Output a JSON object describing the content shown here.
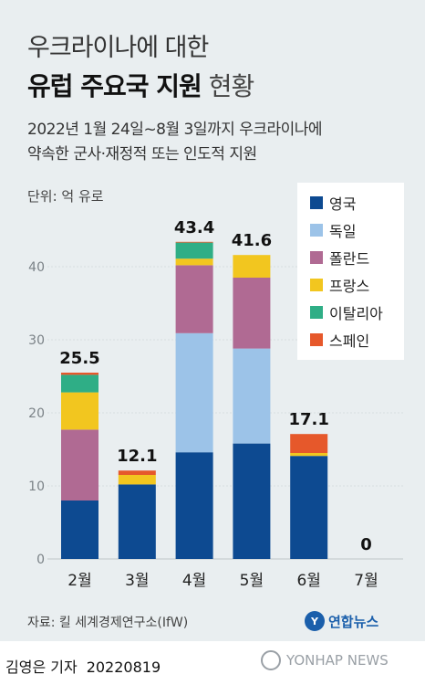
{
  "header": {
    "title_line1": "우크라이나에 대한",
    "title_bold": "유럽 주요국 지원",
    "title_light": "현황",
    "subtitle_line1": "2022년 1월 24일~8월 3일까지 우크라이나에",
    "subtitle_line2": "약속한 군사·재정적 또는 인도적 지원",
    "unit": "단위: 억 유로"
  },
  "legend": [
    {
      "label": "영국",
      "color": "#0d4a91"
    },
    {
      "label": "독일",
      "color": "#9cc3e8"
    },
    {
      "label": "폴란드",
      "color": "#b06a93"
    },
    {
      "label": "프랑스",
      "color": "#f2c61f"
    },
    {
      "label": "이탈리아",
      "color": "#2fae86"
    },
    {
      "label": "스페인",
      "color": "#e6582b"
    }
  ],
  "chart_data": {
    "type": "bar",
    "stacked": true,
    "categories": [
      "2월",
      "3월",
      "4월",
      "5월",
      "6월",
      "7월"
    ],
    "totals": [
      "25.5",
      "12.1",
      "43.4",
      "41.6",
      "17.1",
      "0"
    ],
    "ylim": [
      0,
      45
    ],
    "yticks": [
      "0",
      "10",
      "20",
      "30",
      "40"
    ],
    "series": [
      {
        "name": "영국",
        "color": "#0d4a91",
        "values": [
          8.0,
          10.2,
          14.6,
          15.8,
          14.1,
          0
        ]
      },
      {
        "name": "독일",
        "color": "#9cc3e8",
        "values": [
          0,
          0,
          16.3,
          13.0,
          0,
          0
        ]
      },
      {
        "name": "폴란드",
        "color": "#b06a93",
        "values": [
          9.7,
          0,
          9.3,
          9.7,
          0,
          0
        ]
      },
      {
        "name": "프랑스",
        "color": "#f2c61f",
        "values": [
          5.1,
          1.3,
          0.9,
          3.1,
          0.4,
          0
        ]
      },
      {
        "name": "이탈리아",
        "color": "#2fae86",
        "values": [
          2.4,
          0,
          2.2,
          0,
          0,
          0
        ]
      },
      {
        "name": "스페인",
        "color": "#e6582b",
        "values": [
          0.3,
          0.6,
          0.1,
          0,
          2.6,
          0
        ]
      }
    ]
  },
  "footer": {
    "source": "자료: 킬 세계경제연구소(IfW)",
    "logo_mark": "Y",
    "logo_text": "연합뉴스",
    "author": "김영은 기자",
    "date": "20220819",
    "watermark": "YONHAP NEWS"
  }
}
